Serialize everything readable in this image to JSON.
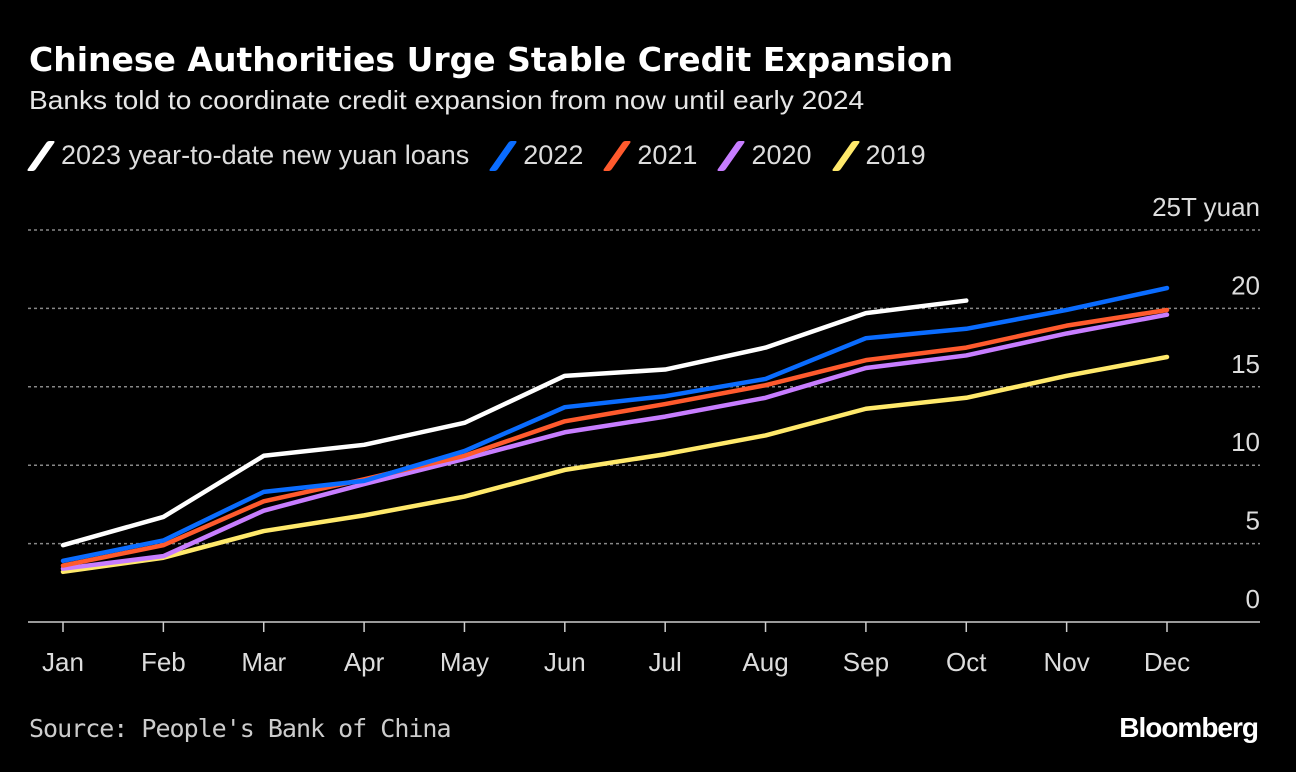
{
  "chart_data": {
    "type": "line",
    "title": "Chinese Authorities Urge Stable Credit Expansion",
    "subtitle": "Banks told to coordinate credit expansion from now until early 2024",
    "ylabel": "25T yuan",
    "ylim": [
      0,
      25
    ],
    "yticks": [
      0,
      5,
      10,
      15,
      20,
      25
    ],
    "ytick_labels": [
      "0",
      "5",
      "10",
      "15",
      "20",
      "25T yuan"
    ],
    "grid": true,
    "legend_placement": "top",
    "categories": [
      "Jan",
      "Feb",
      "Mar",
      "Apr",
      "May",
      "Jun",
      "Jul",
      "Aug",
      "Sep",
      "Oct",
      "Nov",
      "Dec"
    ],
    "series": [
      {
        "name": "2023 year-to-date new yuan loans",
        "color": "#ffffff",
        "values": [
          4.9,
          6.7,
          10.6,
          11.3,
          12.7,
          15.7,
          16.1,
          17.5,
          19.7,
          20.5,
          null,
          null
        ]
      },
      {
        "name": "2022",
        "color": "#0a6cff",
        "values": [
          3.9,
          5.2,
          8.3,
          9.0,
          10.9,
          13.7,
          14.4,
          15.5,
          18.1,
          18.7,
          19.9,
          21.3
        ]
      },
      {
        "name": "2021",
        "color": "#ff5a2d",
        "values": [
          3.6,
          4.9,
          7.7,
          9.1,
          10.6,
          12.8,
          13.9,
          15.1,
          16.7,
          17.5,
          18.9,
          19.9
        ]
      },
      {
        "name": "2020",
        "color": "#c77dff",
        "values": [
          3.4,
          4.2,
          7.1,
          8.8,
          10.4,
          12.1,
          13.1,
          14.3,
          16.2,
          17.0,
          18.4,
          19.6
        ]
      },
      {
        "name": "2019",
        "color": "#ffe96b",
        "values": [
          3.2,
          4.1,
          5.8,
          6.8,
          8.0,
          9.7,
          10.7,
          11.9,
          13.6,
          14.3,
          15.7,
          16.9
        ]
      }
    ],
    "source": "Source: People's Bank of China"
  },
  "branding": {
    "logo": "Bloomberg"
  }
}
